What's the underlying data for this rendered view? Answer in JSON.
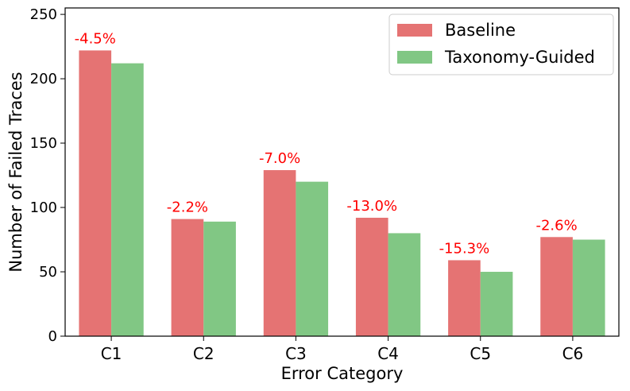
{
  "chart_data": {
    "type": "bar",
    "categories": [
      "C1",
      "C2",
      "C3",
      "C4",
      "C5",
      "C6"
    ],
    "series": [
      {
        "name": "Baseline",
        "values": [
          222,
          91,
          129,
          92,
          59,
          77
        ],
        "color": "#e57373"
      },
      {
        "name": "Taxonomy-Guided",
        "values": [
          212,
          89,
          120,
          80,
          50,
          75
        ],
        "color": "#81c784"
      }
    ],
    "annotations": [
      "-4.5%",
      "-2.2%",
      "-7.0%",
      "-13.0%",
      "-15.3%",
      "-2.6%"
    ],
    "annotation_color": "#ff0000",
    "xlabel": "Error Category",
    "ylabel": "Number of Failed Traces",
    "ylim": [
      0,
      255
    ],
    "yticks": [
      0,
      50,
      100,
      150,
      200,
      250
    ],
    "grid": false,
    "legend_position": "top-right"
  }
}
